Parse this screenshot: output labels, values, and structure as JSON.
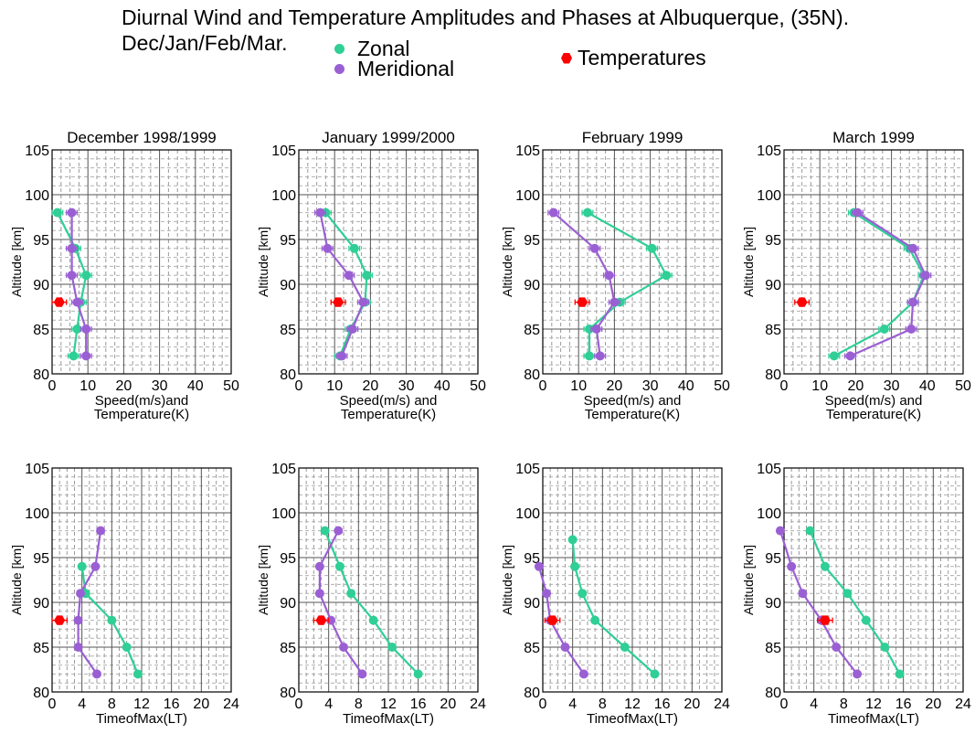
{
  "figure": {
    "title": "Diurnal Wind and Temperature Amplitudes and Phases at Albuquerque, (35N).",
    "subtitle": "Dec/Jan/Feb/Mar.",
    "legend": [
      {
        "name": "Zonal",
        "color": "#2fcf96",
        "marker": "circle"
      },
      {
        "name": "Meridional",
        "color": "#9b5fd4",
        "marker": "circle"
      },
      {
        "name": "Temperatures",
        "color": "#ff0000",
        "marker": "hexagon"
      }
    ]
  },
  "colors": {
    "zonal": "#2fcf96",
    "meridional": "#9b5fd4",
    "temperature": "#ff0000",
    "grid": "#888888"
  },
  "chart_data": [
    {
      "type": "line",
      "title": "December 1998/1999",
      "xlabel": [
        "Speed(m/s)and",
        "Temperature(K)"
      ],
      "ylabel": "Altitude [km]",
      "xlim": [
        0,
        50
      ],
      "ylim": [
        80,
        105
      ],
      "xticks": [
        0,
        10,
        20,
        30,
        40,
        50
      ],
      "yticks": [
        80,
        85,
        90,
        95,
        100,
        105
      ],
      "grid": true,
      "series": [
        {
          "name": "Zonal",
          "points": [
            [
              1.5,
              98
            ],
            [
              6.5,
              94
            ],
            [
              9.5,
              91
            ],
            [
              8,
              88
            ],
            [
              7,
              85
            ],
            [
              6,
              82
            ]
          ],
          "err": 1.5
        },
        {
          "name": "Meridional",
          "points": [
            [
              5.5,
              98
            ],
            [
              5.5,
              94
            ],
            [
              5.5,
              91
            ],
            [
              7,
              88
            ],
            [
              9.5,
              85
            ],
            [
              9.5,
              82
            ]
          ],
          "err": 1.5
        },
        {
          "name": "Temperatures",
          "points": [
            [
              2,
              88
            ]
          ],
          "err": 2,
          "marker_only": true
        }
      ]
    },
    {
      "type": "line",
      "title": "January 1999/2000",
      "xlabel": [
        "Speed(m/s) and",
        "Temperature(K)"
      ],
      "ylabel": "Altitude [km]",
      "xlim": [
        0,
        50
      ],
      "ylim": [
        80,
        105
      ],
      "xticks": [
        0,
        10,
        20,
        30,
        40,
        50
      ],
      "yticks": [
        80,
        85,
        90,
        95,
        100,
        105
      ],
      "grid": true,
      "series": [
        {
          "name": "Zonal",
          "points": [
            [
              7.5,
              98
            ],
            [
              15.5,
              94
            ],
            [
              19,
              91
            ],
            [
              18.5,
              88
            ],
            [
              14.5,
              85
            ],
            [
              11.5,
              82
            ]
          ],
          "err": 1.5
        },
        {
          "name": "Meridional",
          "points": [
            [
              6,
              98
            ],
            [
              8,
              94
            ],
            [
              14,
              91
            ],
            [
              18,
              88
            ],
            [
              15,
              85
            ],
            [
              12,
              82
            ]
          ],
          "err": 1.5
        },
        {
          "name": "Temperatures",
          "points": [
            [
              11,
              88
            ]
          ],
          "err": 2,
          "marker_only": true
        }
      ]
    },
    {
      "type": "line",
      "title": "February 1999",
      "xlabel": [
        "Speed(m/s) and",
        "Temperature(K)"
      ],
      "ylabel": "Altitude [km]",
      "xlim": [
        0,
        50
      ],
      "ylim": [
        80,
        105
      ],
      "xticks": [
        0,
        10,
        20,
        30,
        40,
        50
      ],
      "yticks": [
        80,
        85,
        90,
        95,
        100,
        105
      ],
      "grid": true,
      "series": [
        {
          "name": "Zonal",
          "points": [
            [
              12.5,
              98
            ],
            [
              30.5,
              94
            ],
            [
              34.5,
              91
            ],
            [
              21.5,
              88
            ],
            [
              13,
              85
            ],
            [
              13,
              82
            ]
          ],
          "err": 1.5
        },
        {
          "name": "Meridional",
          "points": [
            [
              3,
              98
            ],
            [
              14.5,
              94
            ],
            [
              18.5,
              91
            ],
            [
              20,
              88
            ],
            [
              15,
              85
            ],
            [
              16,
              82
            ]
          ],
          "err": 1.5
        },
        {
          "name": "Temperatures",
          "points": [
            [
              11,
              88
            ]
          ],
          "err": 2,
          "marker_only": true
        }
      ]
    },
    {
      "type": "line",
      "title": "March 1999",
      "xlabel": [
        "Speed(m/s) and",
        "Temperature(K)"
      ],
      "ylabel": "Altitude [km]",
      "xlim": [
        0,
        50
      ],
      "ylim": [
        80,
        105
      ],
      "xticks": [
        0,
        10,
        20,
        30,
        40,
        50
      ],
      "yticks": [
        80,
        85,
        90,
        95,
        100,
        105
      ],
      "grid": true,
      "series": [
        {
          "name": "Zonal",
          "points": [
            [
              19.5,
              98
            ],
            [
              35,
              94
            ],
            [
              39,
              91
            ],
            [
              36,
              88
            ],
            [
              28,
              85
            ],
            [
              14,
              82
            ]
          ],
          "err": 1.5
        },
        {
          "name": "Meridional",
          "points": [
            [
              20.5,
              98
            ],
            [
              36,
              94
            ],
            [
              39.5,
              91
            ],
            [
              36,
              88
            ],
            [
              35.5,
              85
            ],
            [
              18.5,
              82
            ]
          ],
          "err": 1.5
        },
        {
          "name": "Temperatures",
          "points": [
            [
              5,
              88
            ]
          ],
          "err": 2,
          "marker_only": true
        }
      ]
    },
    {
      "type": "line",
      "title": "",
      "xlabel": [
        "TimeofMax(LT)"
      ],
      "ylabel": "Altitude [km]",
      "xlim": [
        0,
        24
      ],
      "ylim": [
        80,
        105
      ],
      "xticks": [
        0,
        4,
        8,
        12,
        16,
        20,
        24
      ],
      "yticks": [
        80,
        85,
        90,
        95,
        100,
        105
      ],
      "grid": true,
      "series": [
        {
          "name": "Zonal",
          "points": [
            [
              4,
              94
            ],
            [
              4.5,
              91
            ],
            [
              8,
              88
            ],
            [
              10,
              85
            ],
            [
              11.5,
              82
            ]
          ]
        },
        {
          "name": "Meridional",
          "points": [
            [
              6.5,
              98
            ],
            [
              5.8,
              94
            ],
            [
              3.8,
              91
            ],
            [
              3.5,
              88
            ],
            [
              3.5,
              85
            ],
            [
              6,
              82
            ]
          ]
        },
        {
          "name": "Temperatures",
          "points": [
            [
              1,
              88
            ]
          ],
          "err": 1,
          "marker_only": true
        }
      ]
    },
    {
      "type": "line",
      "title": "",
      "xlabel": [
        "TimeofMax(LT)"
      ],
      "ylabel": "Altitude [km]",
      "xlim": [
        0,
        24
      ],
      "ylim": [
        80,
        105
      ],
      "xticks": [
        0,
        4,
        8,
        12,
        16,
        20,
        24
      ],
      "yticks": [
        80,
        85,
        90,
        95,
        100,
        105
      ],
      "grid": true,
      "series": [
        {
          "name": "Zonal",
          "points": [
            [
              3.5,
              98
            ],
            [
              5.5,
              94
            ],
            [
              7,
              91
            ],
            [
              10,
              88
            ],
            [
              12.5,
              85
            ],
            [
              16,
              82
            ]
          ]
        },
        {
          "name": "Meridional",
          "points": [
            [
              5.3,
              98
            ],
            [
              2.8,
              94
            ],
            [
              2.8,
              91
            ],
            [
              4.3,
              88
            ],
            [
              6,
              85
            ],
            [
              8.5,
              82
            ]
          ]
        },
        {
          "name": "Temperatures",
          "points": [
            [
              3,
              88
            ]
          ],
          "err": 1,
          "marker_only": true
        }
      ]
    },
    {
      "type": "line",
      "title": "",
      "xlabel": [
        "TimeofMax(LT)"
      ],
      "ylabel": "Altitude [km]",
      "xlim": [
        0,
        24
      ],
      "ylim": [
        80,
        105
      ],
      "xticks": [
        0,
        4,
        8,
        12,
        16,
        20,
        24
      ],
      "yticks": [
        80,
        85,
        90,
        95,
        100,
        105
      ],
      "grid": true,
      "series": [
        {
          "name": "Zonal",
          "points": [
            [
              4,
              97
            ],
            [
              4.3,
              94
            ],
            [
              5.3,
              91
            ],
            [
              7,
              88
            ],
            [
              11,
              85
            ],
            [
              15,
              82
            ]
          ]
        },
        {
          "name": "Meridional",
          "points": [
            [
              -0.5,
              94
            ],
            [
              0.5,
              91
            ],
            [
              1,
              88
            ],
            [
              3,
              85
            ],
            [
              5.5,
              82
            ]
          ]
        },
        {
          "name": "Temperatures",
          "points": [
            [
              1.3,
              88
            ]
          ],
          "err": 1,
          "marker_only": true
        }
      ]
    },
    {
      "type": "line",
      "title": "",
      "xlabel": [
        "TimeofMax(LT)"
      ],
      "ylabel": "Altitude [km]",
      "xlim": [
        0,
        24
      ],
      "ylim": [
        80,
        105
      ],
      "xticks": [
        0,
        4,
        8,
        12,
        16,
        20,
        24
      ],
      "yticks": [
        80,
        85,
        90,
        95,
        100,
        105
      ],
      "grid": true,
      "series": [
        {
          "name": "Zonal",
          "points": [
            [
              3.5,
              98
            ],
            [
              5.5,
              94
            ],
            [
              8.5,
              91
            ],
            [
              11,
              88
            ],
            [
              13.5,
              85
            ],
            [
              15.5,
              82
            ]
          ]
        },
        {
          "name": "Meridional",
          "points": [
            [
              -0.5,
              98
            ],
            [
              1,
              94
            ],
            [
              2.5,
              91
            ],
            [
              5,
              88
            ],
            [
              7,
              85
            ],
            [
              9.8,
              82
            ]
          ]
        },
        {
          "name": "Temperatures",
          "points": [
            [
              5.5,
              88
            ]
          ],
          "err": 1,
          "marker_only": true
        }
      ]
    }
  ]
}
